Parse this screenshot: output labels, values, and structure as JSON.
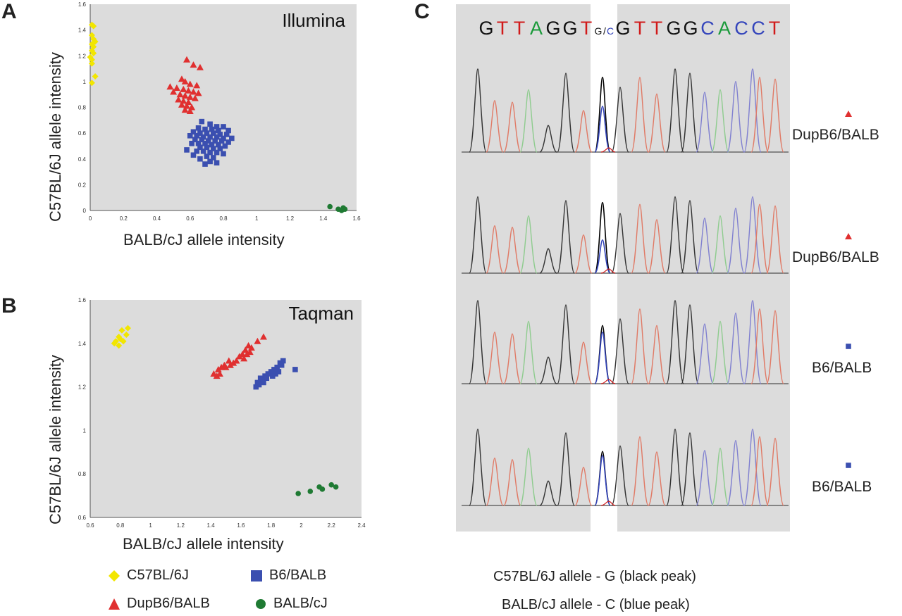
{
  "panels": {
    "A": {
      "letter": "A"
    },
    "B": {
      "letter": "B"
    },
    "C": {
      "letter": "C"
    }
  },
  "colors": {
    "plot_bg": "#dcdcdc",
    "C57BL/6J": "#f2e600",
    "DupB6/BALB": "#e03030",
    "B6/BALB": "#3b4fb0",
    "BALB/cJ": "#1f7a33",
    "base_G": "#111111",
    "base_T": "#d11a1a",
    "base_A": "#1a9a3a",
    "base_C": "#3344bb",
    "trace_black": "#333333",
    "trace_red": "#e07a66",
    "trace_green": "#8fcc8f",
    "trace_blue": "#8080d0"
  },
  "chart_data": [
    {
      "type": "scatter",
      "panel": "A",
      "title": "Illumina",
      "xlabel": "BALB/cJ allele intensity",
      "ylabel": "C57BL/6J allele intensity",
      "xlim": [
        0,
        1.6
      ],
      "ylim": [
        0,
        1.6
      ],
      "xticks": [
        "0",
        "0.2",
        "0.4",
        "0.6",
        "0.8",
        "1",
        "1.2",
        "1.4",
        "1.6"
      ],
      "yticks": [
        "0",
        "0.2",
        "0.4",
        "0.6",
        "0.8",
        "1",
        "1.2",
        "1.4",
        "1.6"
      ],
      "grid": false,
      "series": [
        {
          "name": "C57BL/6J",
          "marker": "diamond",
          "points": [
            [
              0.01,
              1.44
            ],
            [
              0.02,
              1.43
            ],
            [
              0.01,
              1.36
            ],
            [
              0.02,
              1.33
            ],
            [
              0.03,
              1.31
            ],
            [
              0.01,
              1.29
            ],
            [
              0.02,
              1.27
            ],
            [
              0.01,
              1.24
            ],
            [
              0.02,
              1.22
            ],
            [
              0.0,
              1.19
            ],
            [
              0.01,
              1.17
            ],
            [
              0.01,
              1.14
            ],
            [
              0.03,
              1.04
            ],
            [
              0.01,
              0.99
            ]
          ]
        },
        {
          "name": "DupB6/BALB",
          "marker": "triangle",
          "points": [
            [
              0.58,
              1.17
            ],
            [
              0.62,
              1.13
            ],
            [
              0.66,
              1.11
            ],
            [
              0.55,
              1.02
            ],
            [
              0.57,
              1.0
            ],
            [
              0.6,
              0.98
            ],
            [
              0.64,
              0.97
            ],
            [
              0.48,
              0.96
            ],
            [
              0.52,
              0.95
            ],
            [
              0.56,
              0.94
            ],
            [
              0.59,
              0.93
            ],
            [
              0.62,
              0.92
            ],
            [
              0.65,
              0.91
            ],
            [
              0.5,
              0.92
            ],
            [
              0.54,
              0.9
            ],
            [
              0.57,
              0.89
            ],
            [
              0.6,
              0.88
            ],
            [
              0.63,
              0.87
            ],
            [
              0.53,
              0.86
            ],
            [
              0.56,
              0.85
            ],
            [
              0.59,
              0.84
            ],
            [
              0.55,
              0.82
            ],
            [
              0.58,
              0.81
            ],
            [
              0.61,
              0.8
            ],
            [
              0.57,
              0.78
            ],
            [
              0.6,
              0.77
            ]
          ]
        },
        {
          "name": "B6/BALB",
          "marker": "square",
          "points": [
            [
              0.67,
              0.69
            ],
            [
              0.72,
              0.67
            ],
            [
              0.76,
              0.65
            ],
            [
              0.8,
              0.65
            ],
            [
              0.65,
              0.64
            ],
            [
              0.69,
              0.63
            ],
            [
              0.73,
              0.63
            ],
            [
              0.77,
              0.62
            ],
            [
              0.83,
              0.62
            ],
            [
              0.62,
              0.61
            ],
            [
              0.66,
              0.6
            ],
            [
              0.7,
              0.6
            ],
            [
              0.74,
              0.6
            ],
            [
              0.78,
              0.59
            ],
            [
              0.82,
              0.59
            ],
            [
              0.6,
              0.58
            ],
            [
              0.64,
              0.58
            ],
            [
              0.68,
              0.57
            ],
            [
              0.72,
              0.57
            ],
            [
              0.76,
              0.57
            ],
            [
              0.8,
              0.56
            ],
            [
              0.85,
              0.56
            ],
            [
              0.63,
              0.55
            ],
            [
              0.67,
              0.55
            ],
            [
              0.71,
              0.54
            ],
            [
              0.75,
              0.54
            ],
            [
              0.79,
              0.54
            ],
            [
              0.83,
              0.53
            ],
            [
              0.61,
              0.52
            ],
            [
              0.65,
              0.52
            ],
            [
              0.69,
              0.52
            ],
            [
              0.73,
              0.51
            ],
            [
              0.77,
              0.51
            ],
            [
              0.81,
              0.5
            ],
            [
              0.66,
              0.49
            ],
            [
              0.7,
              0.49
            ],
            [
              0.74,
              0.48
            ],
            [
              0.78,
              0.48
            ],
            [
              0.64,
              0.46
            ],
            [
              0.68,
              0.46
            ],
            [
              0.72,
              0.45
            ],
            [
              0.76,
              0.45
            ],
            [
              0.8,
              0.44
            ],
            [
              0.58,
              0.47
            ],
            [
              0.62,
              0.43
            ],
            [
              0.7,
              0.42
            ],
            [
              0.74,
              0.41
            ],
            [
              0.66,
              0.4
            ],
            [
              0.72,
              0.38
            ],
            [
              0.76,
              0.37
            ],
            [
              0.69,
              0.36
            ]
          ]
        },
        {
          "name": "BALB/cJ",
          "marker": "circle",
          "points": [
            [
              1.44,
              0.03
            ],
            [
              1.49,
              0.01
            ],
            [
              1.52,
              0.02
            ],
            [
              1.53,
              0.01
            ],
            [
              1.51,
              0.0
            ]
          ]
        }
      ]
    },
    {
      "type": "scatter",
      "panel": "B",
      "title": "Taqman",
      "xlabel": "BALB/cJ allele intensity",
      "ylabel": "C57BL/6J allele intensity",
      "xlim": [
        0.6,
        2.4
      ],
      "ylim": [
        0.6,
        1.6
      ],
      "xticks": [
        "0.6",
        "0.8",
        "1",
        "1.2",
        "1.4",
        "1.6",
        "1.8",
        "2",
        "2.2",
        "2.4"
      ],
      "yticks": [
        "0.6",
        "0.8",
        "1",
        "1.2",
        "1.4",
        "1.6"
      ],
      "grid": false,
      "series": [
        {
          "name": "C57BL/6J",
          "marker": "diamond",
          "points": [
            [
              0.85,
              1.47
            ],
            [
              0.81,
              1.46
            ],
            [
              0.84,
              1.44
            ],
            [
              0.79,
              1.43
            ],
            [
              0.8,
              1.42
            ],
            [
              0.77,
              1.41
            ],
            [
              0.82,
              1.41
            ],
            [
              0.76,
              1.4
            ],
            [
              0.79,
              1.39
            ]
          ]
        },
        {
          "name": "DupB6/BALB",
          "marker": "triangle",
          "points": [
            [
              1.75,
              1.43
            ],
            [
              1.71,
              1.41
            ],
            [
              1.65,
              1.39
            ],
            [
              1.67,
              1.38
            ],
            [
              1.63,
              1.37
            ],
            [
              1.66,
              1.36
            ],
            [
              1.61,
              1.35
            ],
            [
              1.64,
              1.35
            ],
            [
              1.59,
              1.34
            ],
            [
              1.62,
              1.33
            ],
            [
              1.57,
              1.32
            ],
            [
              1.52,
              1.32
            ],
            [
              1.55,
              1.31
            ],
            [
              1.49,
              1.3
            ],
            [
              1.53,
              1.3
            ],
            [
              1.47,
              1.29
            ],
            [
              1.5,
              1.29
            ],
            [
              1.45,
              1.28
            ],
            [
              1.42,
              1.26
            ],
            [
              1.46,
              1.26
            ],
            [
              1.44,
              1.25
            ]
          ]
        },
        {
          "name": "B6/BALB",
          "marker": "square",
          "points": [
            [
              1.88,
              1.32
            ],
            [
              1.86,
              1.31
            ],
            [
              1.87,
              1.3
            ],
            [
              1.84,
              1.29
            ],
            [
              1.82,
              1.28
            ],
            [
              1.96,
              1.28
            ],
            [
              1.8,
              1.27
            ],
            [
              1.85,
              1.27
            ],
            [
              1.78,
              1.26
            ],
            [
              1.83,
              1.26
            ],
            [
              1.76,
              1.25
            ],
            [
              1.81,
              1.25
            ],
            [
              1.73,
              1.24
            ],
            [
              1.77,
              1.24
            ],
            [
              1.74,
              1.23
            ],
            [
              1.71,
              1.22
            ],
            [
              1.75,
              1.22
            ],
            [
              1.72,
              1.21
            ],
            [
              1.7,
              1.2
            ]
          ]
        },
        {
          "name": "BALB/cJ",
          "marker": "circle",
          "points": [
            [
              2.2,
              0.75
            ],
            [
              2.12,
              0.74
            ],
            [
              2.23,
              0.74
            ],
            [
              2.14,
              0.73
            ],
            [
              2.06,
              0.72
            ],
            [
              1.98,
              0.71
            ]
          ]
        }
      ]
    }
  ],
  "legend": [
    {
      "name": "C57BL/6J",
      "marker": "diamond"
    },
    {
      "name": "B6/BALB",
      "marker": "square"
    },
    {
      "name": "DupB6/BALB",
      "marker": "triangle"
    },
    {
      "name": "BALB/cJ",
      "marker": "circle"
    }
  ],
  "sequence_panel": {
    "bases_left": [
      "G",
      "T",
      "T",
      "A",
      "G",
      "G",
      "T"
    ],
    "snp_label_g": "G",
    "snp_label_sep": "/",
    "snp_label_c": "C",
    "bases_right": [
      "G",
      "T",
      "T",
      "G",
      "G",
      "C",
      "A",
      "C",
      "C",
      "T"
    ],
    "traces": [
      {
        "genotype": "DupB6/BALB",
        "marker": "triangle",
        "snp_black": 0.9,
        "snp_blue": 0.55
      },
      {
        "genotype": "DupB6/BALB",
        "marker": "triangle",
        "snp_black": 0.85,
        "snp_blue": 0.4
      },
      {
        "genotype": "B6/BALB",
        "marker": "square",
        "snp_black": 0.7,
        "snp_blue": 0.62
      },
      {
        "genotype": "B6/BALB",
        "marker": "square",
        "snp_black": 0.65,
        "snp_blue": 0.6
      }
    ],
    "note_line1": "C57BL/6J allele - G (black peak)",
    "note_line2": "BALB/cJ allele - C (blue peak)"
  }
}
